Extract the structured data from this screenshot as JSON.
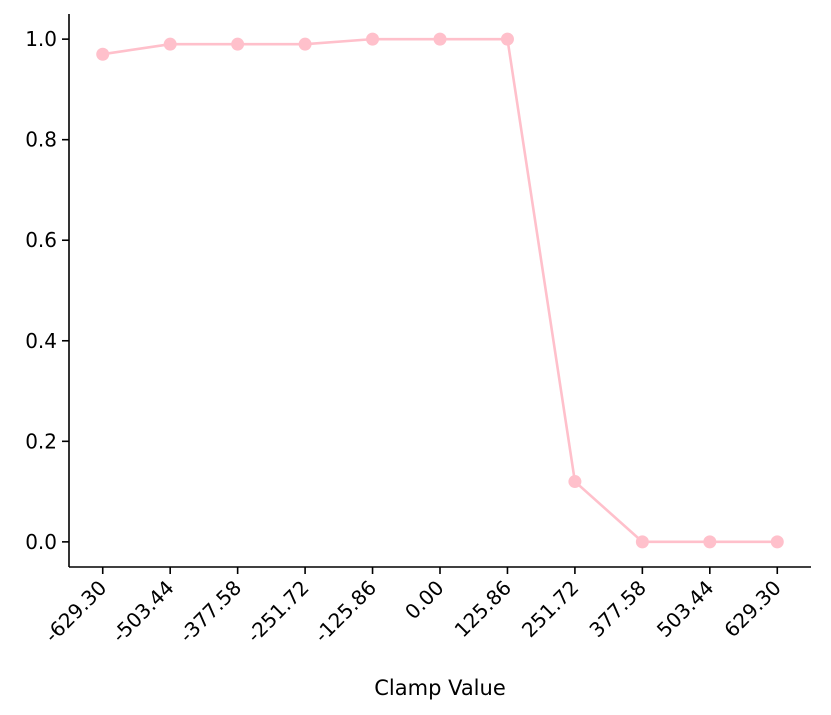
{
  "chart_data": {
    "type": "line",
    "title": "",
    "xlabel": "Clamp Value",
    "ylabel": "",
    "x_tick_labels": [
      "-629.30",
      "-503.44",
      "-377.58",
      "-251.72",
      "-125.86",
      "0.00",
      "125.86",
      "251.72",
      "377.58",
      "503.44",
      "629.30"
    ],
    "y_tick_labels": [
      "0.0",
      "0.2",
      "0.4",
      "0.6",
      "0.8",
      "1.0"
    ],
    "y_ticks": [
      0.0,
      0.2,
      0.4,
      0.6,
      0.8,
      1.0
    ],
    "xlim": [
      -692.23,
      692.23
    ],
    "ylim": [
      -0.05,
      1.05
    ],
    "grid": false,
    "legend": "none",
    "series": [
      {
        "color": "#ffc0cb",
        "marker": "circle",
        "x": [
          -629.3,
          -503.44,
          -377.58,
          -251.72,
          -125.86,
          0.0,
          125.86,
          251.72,
          377.58,
          503.44,
          629.3
        ],
        "y": [
          0.97,
          0.99,
          0.99,
          0.99,
          1.0,
          1.0,
          1.0,
          0.12,
          0.0,
          0.0,
          0.0
        ]
      }
    ]
  }
}
